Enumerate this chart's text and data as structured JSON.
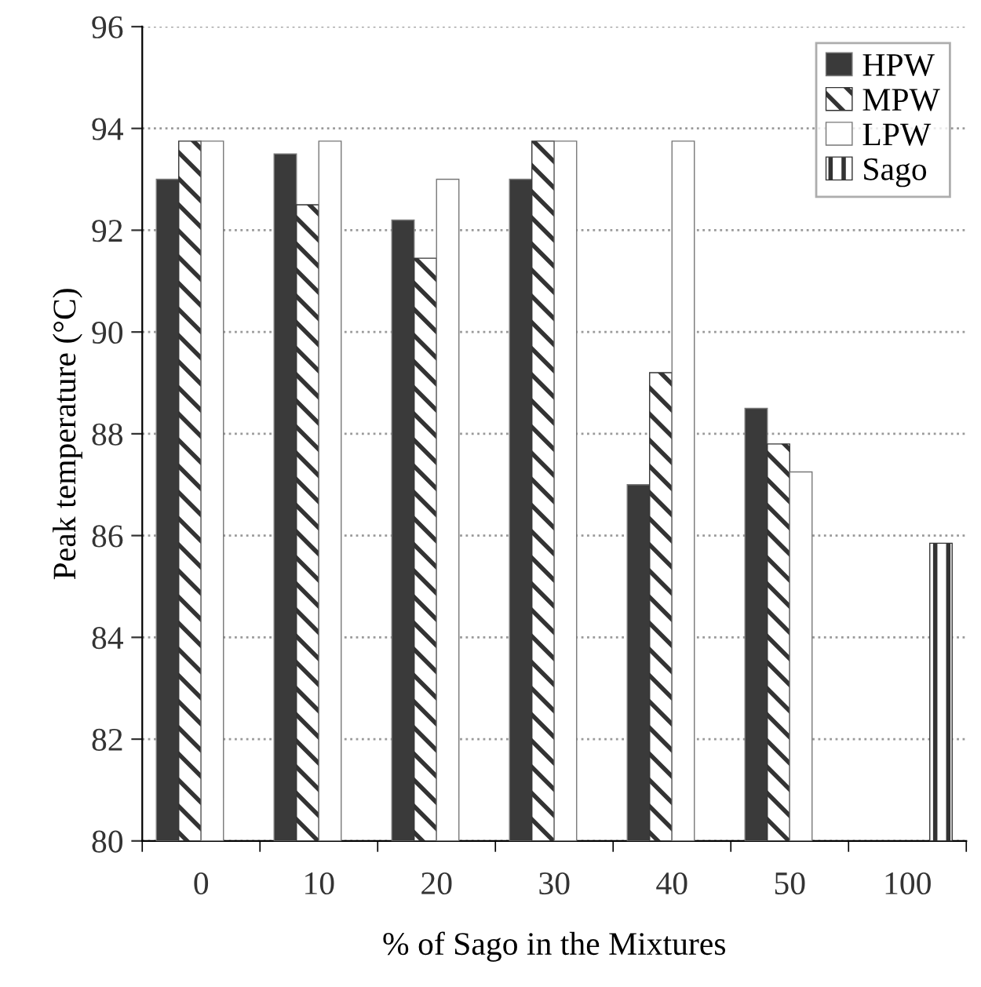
{
  "chart_data": {
    "type": "bar",
    "xlabel": "% of Sago in the Mixtures",
    "ylabel": "Peak temperature (°C)",
    "categories": [
      "0",
      "10",
      "20",
      "30",
      "40",
      "50",
      "100"
    ],
    "series": [
      {
        "name": "HPW",
        "color": "#3a3a3a",
        "values": [
          93.0,
          93.5,
          92.2,
          93.0,
          87.0,
          88.5,
          null
        ]
      },
      {
        "name": "MPW",
        "color": "#333333",
        "values": [
          93.75,
          92.5,
          91.45,
          93.75,
          89.2,
          87.8,
          null
        ]
      },
      {
        "name": "LPW",
        "color": "#ffffff",
        "values": [
          93.75,
          93.75,
          93.0,
          93.75,
          93.75,
          87.25,
          null
        ]
      },
      {
        "name": "Sago",
        "color": "#333333",
        "values": [
          null,
          null,
          null,
          null,
          null,
          null,
          85.85
        ]
      }
    ],
    "ylim": [
      80,
      96
    ],
    "yticks": [
      80,
      82,
      84,
      86,
      88,
      90,
      92,
      94,
      96
    ],
    "grid": "y",
    "legend": "top right"
  }
}
